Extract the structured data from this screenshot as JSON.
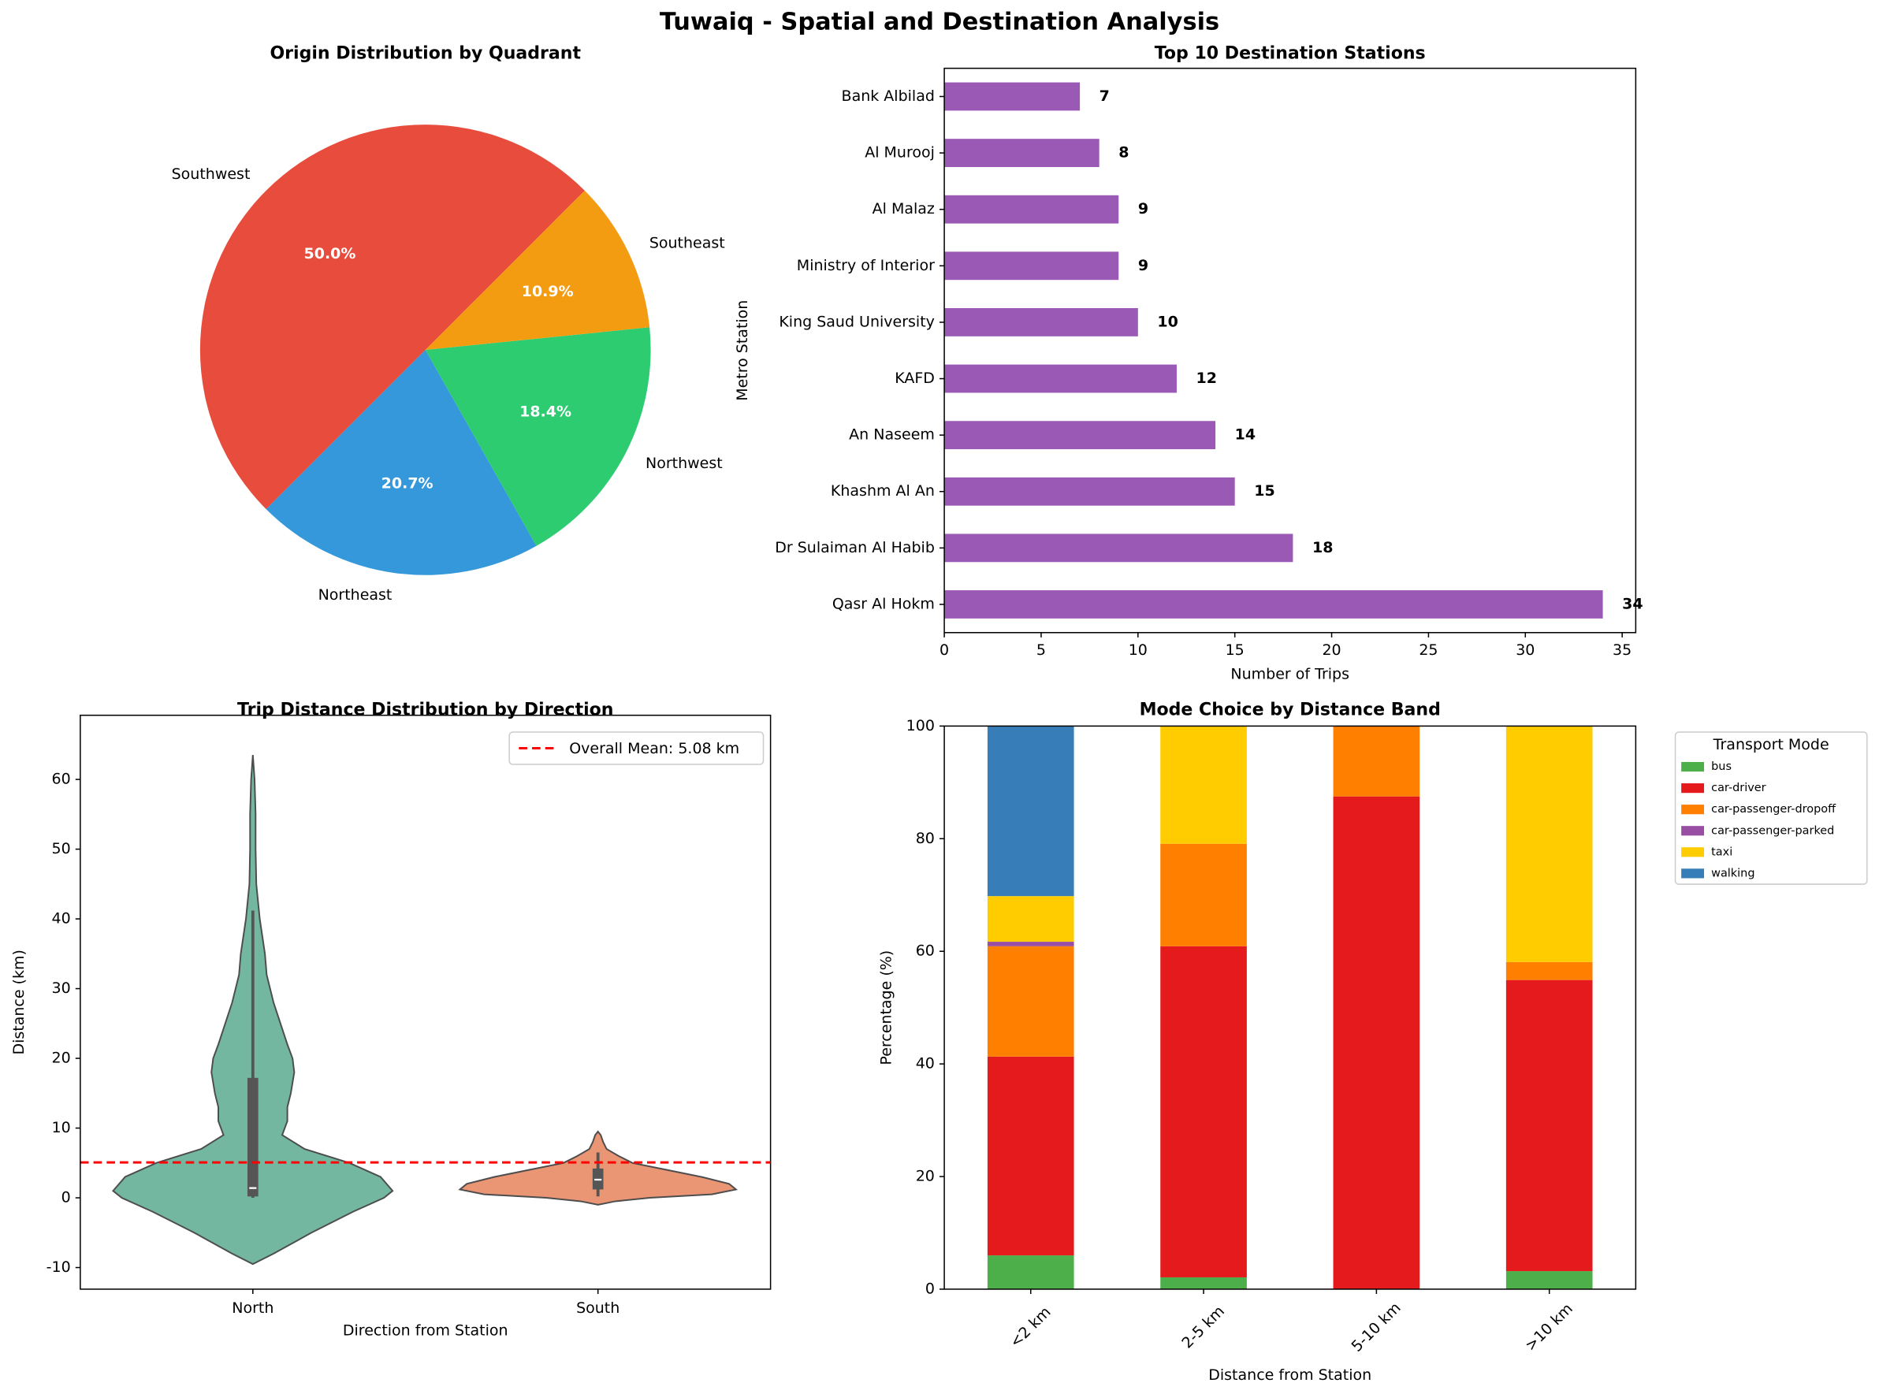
{
  "title": "Tuwaiq - Spatial and Destination Analysis",
  "chart_data": [
    {
      "type": "pie",
      "title": "Origin Distribution by Quadrant",
      "startangle": 45,
      "categories": [
        "Southwest",
        "Northeast",
        "Northwest",
        "Southeast"
      ],
      "values": [
        50.0,
        20.7,
        18.4,
        10.9
      ],
      "value_labels": [
        "50.0%",
        "20.7%",
        "18.4%",
        "10.9%"
      ],
      "colors": [
        "#e74c3c",
        "#3498db",
        "#2ecc71",
        "#f39c12"
      ]
    },
    {
      "type": "hbar",
      "title": "Top 10 Destination Stations",
      "xlabel": "Number of Trips",
      "ylabel": "Metro Station",
      "categories": [
        "Qasr Al Hokm",
        "Dr Sulaiman Al Habib",
        "Khashm Al An",
        "An Naseem",
        "KAFD",
        "King Saud University",
        "Ministry of Interior",
        "Al Malaz",
        "Al Murooj",
        "Bank Albilad"
      ],
      "values": [
        34,
        18,
        15,
        14,
        12,
        10,
        9,
        9,
        8,
        7
      ],
      "color": "#9b59b6",
      "xlim": [
        0,
        35.7
      ],
      "xticks": [
        0,
        5,
        10,
        15,
        20,
        25,
        30,
        35
      ]
    },
    {
      "type": "violin",
      "title": "Trip Distance Distribution by Direction",
      "xlabel": "Direction from Station",
      "ylabel": "Distance (km)",
      "categories": [
        "North",
        "South"
      ],
      "colors": [
        "#73b7a1",
        "#ea9675"
      ],
      "density": [
        {
          "y": [
            -9.5,
            -8,
            -5,
            -2,
            0,
            1,
            3,
            5,
            7,
            9,
            11,
            13,
            15,
            18,
            20,
            22,
            25,
            28,
            32,
            35,
            40,
            45,
            50,
            55,
            60,
            63.5
          ],
          "width": [
            0,
            0.06,
            0.17,
            0.29,
            0.38,
            0.405,
            0.37,
            0.28,
            0.15,
            0.085,
            0.1,
            0.1,
            0.11,
            0.12,
            0.115,
            0.1,
            0.08,
            0.06,
            0.04,
            0.035,
            0.02,
            0.01,
            0.008,
            0.008,
            0.005,
            0
          ]
        },
        {
          "y": [
            -1,
            -0.5,
            0,
            0.5,
            1.2,
            2,
            3,
            4,
            5,
            6,
            7,
            8,
            9,
            9.5
          ],
          "width": [
            0,
            0.05,
            0.15,
            0.33,
            0.4,
            0.38,
            0.3,
            0.2,
            0.1,
            0.06,
            0.025,
            0.015,
            0.008,
            0
          ]
        }
      ],
      "box": [
        {
          "whislo": 0,
          "q1": 0.2,
          "med": 1.4,
          "q3": 17.2,
          "whishi": 41.2
        },
        {
          "whislo": 0.2,
          "q1": 1.2,
          "med": 2.6,
          "q3": 4.2,
          "whishi": 6.5
        }
      ],
      "hline": {
        "value": 5.08,
        "label": "Overall Mean: 5.08 km",
        "color": "#ff0000"
      },
      "ylim": [
        -13.1,
        69.2
      ],
      "yticks": [
        -10,
        0,
        10,
        20,
        30,
        40,
        50,
        60
      ]
    },
    {
      "type": "stacked_bar",
      "title": "Mode Choice by Distance Band",
      "xlabel": "Distance from Station",
      "ylabel": "Percentage (%)",
      "categories": [
        "<2 km",
        "2-5 km",
        "5-10 km",
        ">10 km"
      ],
      "legend_title": "Transport Mode",
      "legend": "outside upper right",
      "series": [
        {
          "name": "bus",
          "color": "#4daf4a",
          "values": [
            6.0,
            2.1,
            0,
            3.2
          ]
        },
        {
          "name": "car-driver",
          "color": "#e41a1c",
          "values": [
            35.3,
            58.8,
            87.5,
            51.7
          ]
        },
        {
          "name": "car-passenger-dropoff",
          "color": "#ff7f00",
          "values": [
            19.6,
            18.2,
            12.5,
            3.2
          ]
        },
        {
          "name": "car-passenger-parked",
          "color": "#984ea3",
          "values": [
            0.8,
            0,
            0,
            0
          ]
        },
        {
          "name": "taxi",
          "color": "#ffcc00",
          "values": [
            8.1,
            20.9,
            0,
            41.9
          ]
        },
        {
          "name": "walking",
          "color": "#377eb8",
          "values": [
            30.2,
            0,
            0,
            0
          ]
        }
      ],
      "ylim": [
        0,
        100
      ],
      "yticks": [
        0,
        20,
        40,
        60,
        80,
        100
      ]
    }
  ]
}
